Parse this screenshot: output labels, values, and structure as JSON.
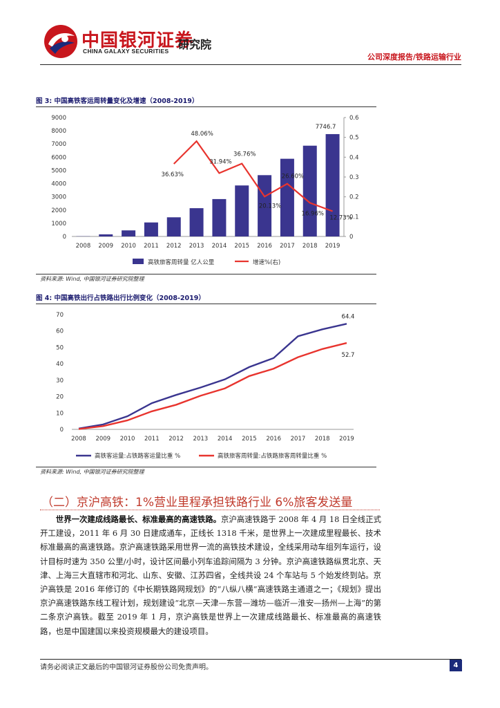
{
  "header": {
    "brand_cn": "中国银河证券",
    "brand_en": "CHINA GALAXY SECURITIES",
    "institute": "研究院",
    "report_type": "公司深度报告/铁路运输行业"
  },
  "figures": [
    {
      "title": "图  3:  中国高铁客运周转量变化及增速（2008-2019）",
      "source": "资料来源: Wind, 中国银河证券研究院整理"
    },
    {
      "title": "图  4:  中国高铁出行占铁路出行比例变化（2008-2019）",
      "source": "资料来源: Wind, 中国银河证券研究院整理"
    }
  ],
  "chart_data": [
    {
      "type": "bar",
      "title": "图 3: 中国高铁客运周转量变化及增速（2008-2019）",
      "categories": [
        "2008",
        "2009",
        "2010",
        "2011",
        "2012",
        "2013",
        "2014",
        "2015",
        "2016",
        "2017",
        "2018",
        "2019"
      ],
      "series": [
        {
          "name": "高铁旅客周转量 亿人公里",
          "type": "bar",
          "axis": "left",
          "values": [
            15,
            160,
            460,
            1060,
            1450,
            2140,
            2830,
            3860,
            4640,
            5880,
            6870,
            7746.7
          ],
          "color": "#3a358f"
        },
        {
          "name": "增速%(右)",
          "type": "line",
          "axis": "right",
          "values": [
            null,
            null,
            null,
            null,
            0.3663,
            0.4806,
            0.3194,
            0.3676,
            0.2013,
            0.266,
            0.1696,
            0.1273
          ],
          "color": "#e8342e"
        }
      ],
      "labels": [
        {
          "text": "7746.7",
          "index": 11,
          "value": 7746.7,
          "axis": "left"
        },
        {
          "text": "36.63%",
          "index": 4,
          "value": 0.3663,
          "axis": "right"
        },
        {
          "text": "48.06%",
          "index": 5,
          "value": 0.4806,
          "axis": "right"
        },
        {
          "text": "31.94%",
          "index": 6,
          "value": 0.3194,
          "axis": "right"
        },
        {
          "text": "36.76%",
          "index": 7,
          "value": 0.3676,
          "axis": "right"
        },
        {
          "text": "20.13%",
          "index": 8,
          "value": 0.2013,
          "axis": "right"
        },
        {
          "text": "26.60%",
          "index": 9,
          "value": 0.266,
          "axis": "right"
        },
        {
          "text": "16.96%",
          "index": 10,
          "value": 0.1696,
          "axis": "right"
        },
        {
          "text": "12.73%",
          "index": 11,
          "value": 0.1273,
          "axis": "right"
        }
      ],
      "y_left": {
        "min": 0,
        "max": 9000,
        "ticks": [
          "0",
          "1000",
          "2000",
          "3000",
          "4000",
          "5000",
          "6000",
          "7000",
          "8000",
          "9000"
        ]
      },
      "y_right": {
        "min": 0,
        "max": 0.6,
        "ticks": [
          "0",
          "0.1",
          "0.2",
          "0.3",
          "0.4",
          "0.5",
          "0.6"
        ]
      },
      "grid": false,
      "legend_position": "bottom"
    },
    {
      "type": "line",
      "title": "图 4: 中国高铁出行占铁路出行比例变化（2008-2019）",
      "categories": [
        "2008",
        "2009",
        "2010",
        "2011",
        "2012",
        "2013",
        "2014",
        "2015",
        "2016",
        "2017",
        "2018",
        "2019"
      ],
      "series": [
        {
          "name": "高铁客运量:占铁路客运量比重 %",
          "color": "#3a358f",
          "values": [
            0.5,
            3,
            8,
            16,
            21,
            25.5,
            30.5,
            38,
            43.5,
            56.8,
            61,
            64.4
          ]
        },
        {
          "name": "高铁旅客周转量:占铁路旅客周转量比重 %",
          "color": "#e8342e",
          "values": [
            0.2,
            2,
            5.5,
            11,
            15,
            20.5,
            25,
            32.5,
            37,
            44,
            49,
            52.7
          ]
        }
      ],
      "labels": [
        {
          "text": "64.4",
          "series": 0,
          "index": 11
        },
        {
          "text": "52.7",
          "series": 1,
          "index": 11
        }
      ],
      "y": {
        "min": 0,
        "max": 70,
        "ticks": [
          "0",
          "10",
          "20",
          "30",
          "40",
          "50",
          "60",
          "70"
        ]
      },
      "grid": false,
      "legend_position": "bottom"
    }
  ],
  "section": {
    "title": "（二）京沪高铁：1%营业里程承担铁路行业 6%旅客发送量",
    "lead": "世界一次建成线路最长、标准最高的高速铁路。",
    "body": "京沪高速铁路于 2008 年 4 月 18 日全线正式开工建设，2011 年 6 月 30 日建成通车，正线长 1318 千米，是世界上一次建成里程最长、技术标准最高的高速铁路。京沪高速铁路采用世界一流的高铁技术建设，全线采用动车组列车运行，设计目标时速为 350 公里/小时，设计区间最小列车追踪间隔为 3 分钟。京沪高速铁路纵贯北京、天津、上海三大直辖市和河北、山东、安徽、江苏四省，全线共设 24 个车站与 5 个始发终到站。京沪高铁是 2016 年修订的《中长期铁路网规划》的“八纵八横”高速铁路主通道之一；《规划》提出京沪高速铁路东线工程计划，规划建设“北京—天津—东营—潍坊—临沂—淮安—扬州—上海”的第二条京沪高铁。截至 2019 年 1 月，京沪高铁是世界上一次建成线路最长、标准最高的高速铁路，也是中国建国以来投资规模最大的建设项目。"
  },
  "footer": {
    "disclaimer": "请务必阅读正文最后的中国银河证券股份公司免责声明。",
    "page_number": "4"
  }
}
